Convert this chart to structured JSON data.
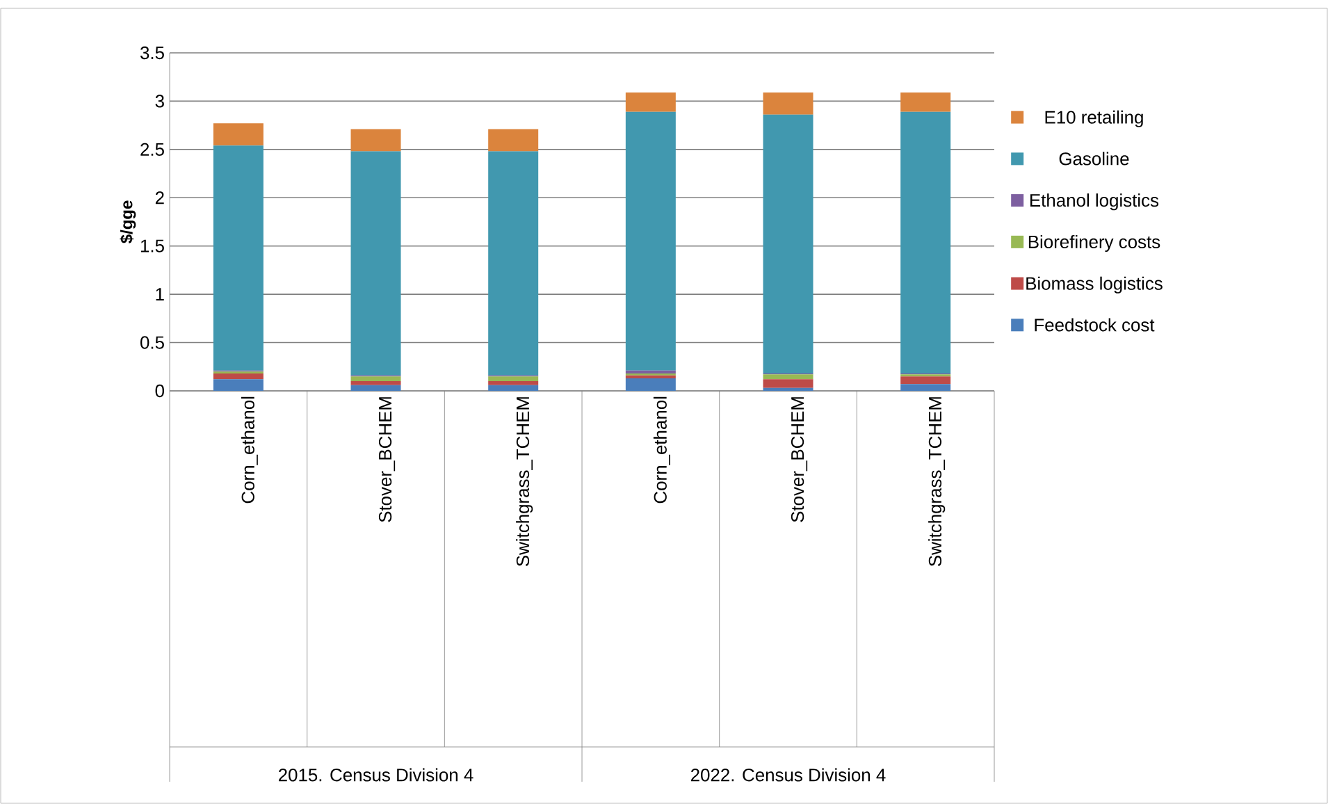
{
  "chart_data": {
    "type": "bar",
    "stacked": true,
    "ylabel": "$/gge",
    "categories": [
      "Corn_ethanol",
      "Stover_BCHEM",
      "Switchgrass_TCHEM",
      "Corn_ethanol",
      "Stover_BCHEM",
      "Switchgrass_TCHEM"
    ],
    "annotations": [
      "2015. Census Division 4",
      "2022. Census Division 4"
    ],
    "series": [
      {
        "name": "Feedstock cost",
        "color": "#4a7ebb",
        "values": [
          0.12,
          0.06,
          0.06,
          0.13,
          0.03,
          0.07
        ]
      },
      {
        "name": "Biomass logistics",
        "color": "#be4b48",
        "values": [
          0.06,
          0.04,
          0.04,
          0.03,
          0.09,
          0.08
        ]
      },
      {
        "name": "Biorefinery costs",
        "color": "#98b954",
        "values": [
          0.02,
          0.05,
          0.05,
          0.02,
          0.05,
          0.02
        ]
      },
      {
        "name": "Ethanol logistics",
        "color": "#7d5fa0",
        "values": [
          0.01,
          0.01,
          0.01,
          0.03,
          0.01,
          0.01
        ]
      },
      {
        "name": "Gasoline",
        "color": "#4198af",
        "values": [
          2.33,
          2.32,
          2.32,
          2.68,
          2.68,
          2.71
        ]
      },
      {
        "name": "E10 retailing",
        "color": "#db843d",
        "values": [
          0.23,
          0.23,
          0.23,
          0.2,
          0.23,
          0.2
        ]
      }
    ],
    "ylim": [
      0,
      3.5
    ],
    "yticks": [
      0,
      0.5,
      1,
      1.5,
      2,
      2.5,
      3,
      3.5
    ],
    "grid": "y",
    "legend": "right"
  }
}
